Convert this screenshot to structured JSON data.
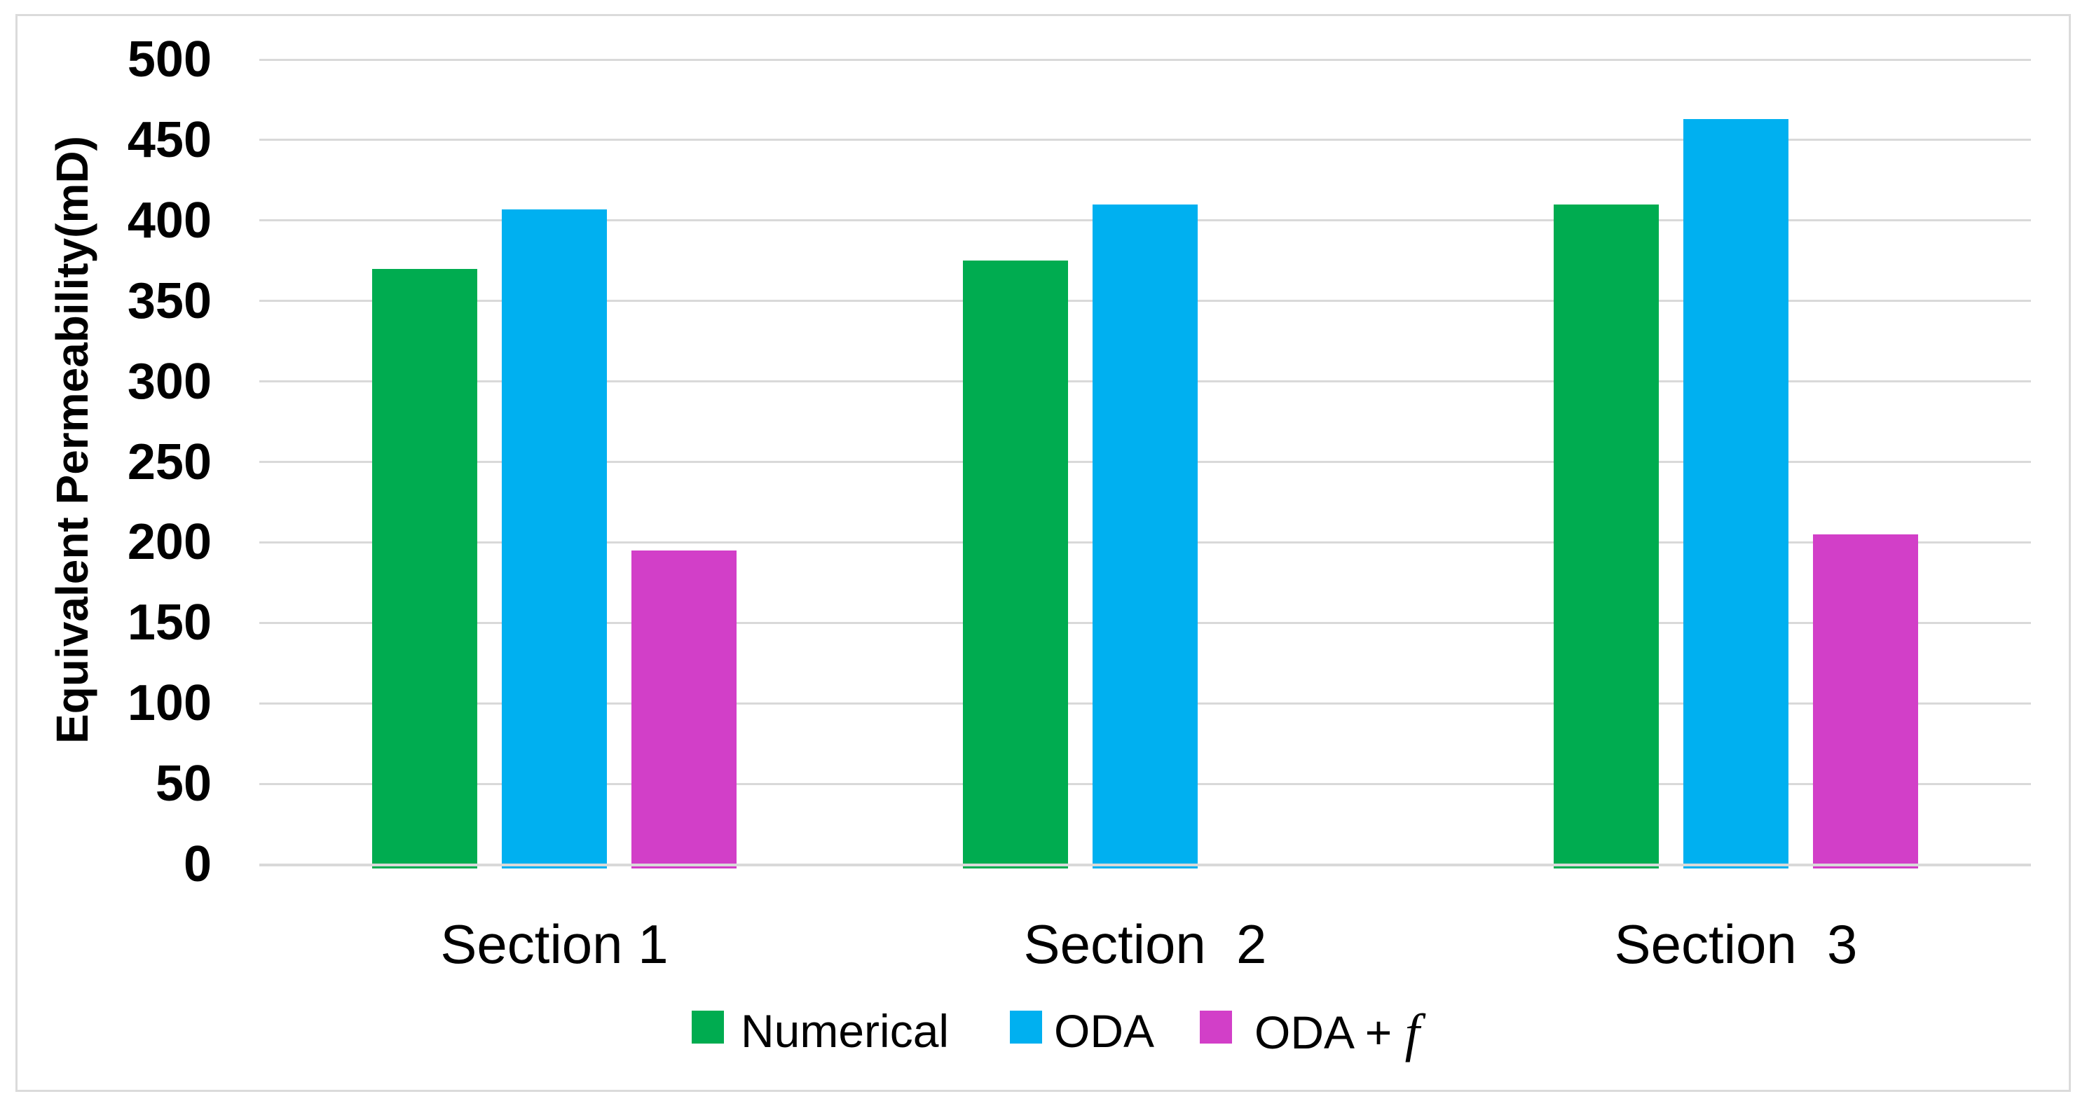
{
  "figure": {
    "background_color": "#FFFFFF",
    "border_color": "#DBDBDB"
  },
  "chart_data": {
    "type": "bar",
    "title": "",
    "xlabel": "",
    "ylabel": "Equivalent Permeability(mD)",
    "categories": [
      "Section 1",
      "Section  2",
      "Section  3"
    ],
    "series": [
      {
        "name": "Numerical",
        "color": "#00AC50",
        "values": [
          370,
          375,
          410
        ]
      },
      {
        "name": "ODA",
        "color": "#00B0F0",
        "values": [
          407,
          410,
          463
        ]
      },
      {
        "name": "ODA + f",
        "color": "#D23FC8",
        "values": [
          195,
          0,
          205
        ]
      }
    ],
    "ylim": [
      0,
      500
    ],
    "ytick_step": 50,
    "ytick_labels": [
      "0",
      "50",
      "100",
      "150",
      "200",
      "250",
      "300",
      "350",
      "400",
      "450",
      "500"
    ],
    "grid": true,
    "gridline_color": "#D9D9D9",
    "axis_line_color": "#D9D9D9",
    "legend_position": "bottom",
    "legend": [
      {
        "label": "Numerical",
        "color": "#00AC50"
      },
      {
        "label": "ODA",
        "color": "#00B0F0"
      },
      {
        "label": "ODA + f",
        "label_prefix": "ODA + ",
        "label_italic": "f",
        "color": "#D23FC8"
      }
    ]
  }
}
